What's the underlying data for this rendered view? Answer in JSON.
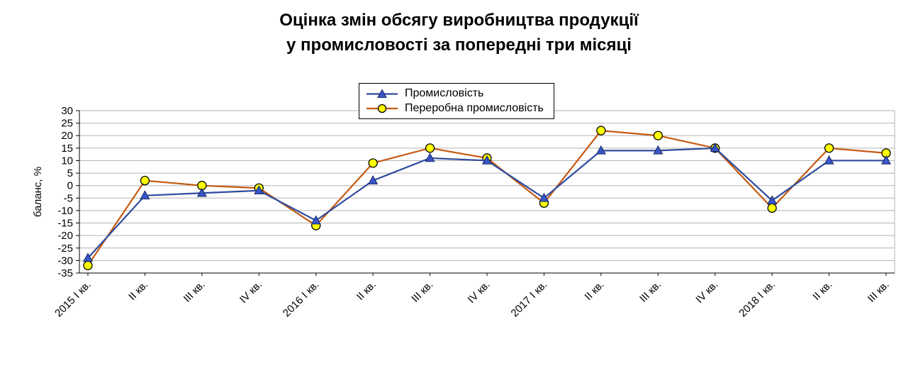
{
  "title": {
    "line1": "Оцінка змін обсягу виробництва продукції",
    "line2": "у промисловості за попередні три місяці"
  },
  "chart_data": {
    "type": "line",
    "title": "Оцінка змін обсягу виробництва продукції у промисловості за попередні три місяці",
    "ylabel": "баланс, %",
    "ylim": [
      -35,
      30
    ],
    "ytick_step": 5,
    "grid": true,
    "grid_color": "#b3b3b3",
    "axis_color": "#000000",
    "legend_position": "top-center",
    "categories": [
      "2015 I кв.",
      "II кв.",
      "III кв.",
      "IV кв.",
      "2016 I кв.",
      "II кв.",
      "III кв.",
      "IV кв.",
      "2017 I кв.",
      "II кв.",
      "III кв.",
      "IV кв.",
      "2018 I кв.",
      "II кв.",
      "III кв."
    ],
    "series": [
      {
        "name": "Промисловість",
        "marker": "triangle",
        "line_color": "#2e4b9e",
        "marker_fill": "#3956c8",
        "marker_stroke": "#1a2a66",
        "values": [
          -29,
          -4,
          -3,
          -2,
          -14,
          2,
          11,
          10,
          -5,
          14,
          14,
          15,
          -6,
          10,
          10
        ]
      },
      {
        "name": "Переробна промисловість",
        "marker": "circle",
        "line_color": "#c55a11",
        "marker_fill": "#ffff00",
        "marker_stroke": "#000000",
        "values": [
          -32,
          2,
          0,
          -1,
          -16,
          9,
          15,
          11,
          -7,
          22,
          20,
          15,
          -9,
          15,
          13
        ]
      }
    ]
  }
}
